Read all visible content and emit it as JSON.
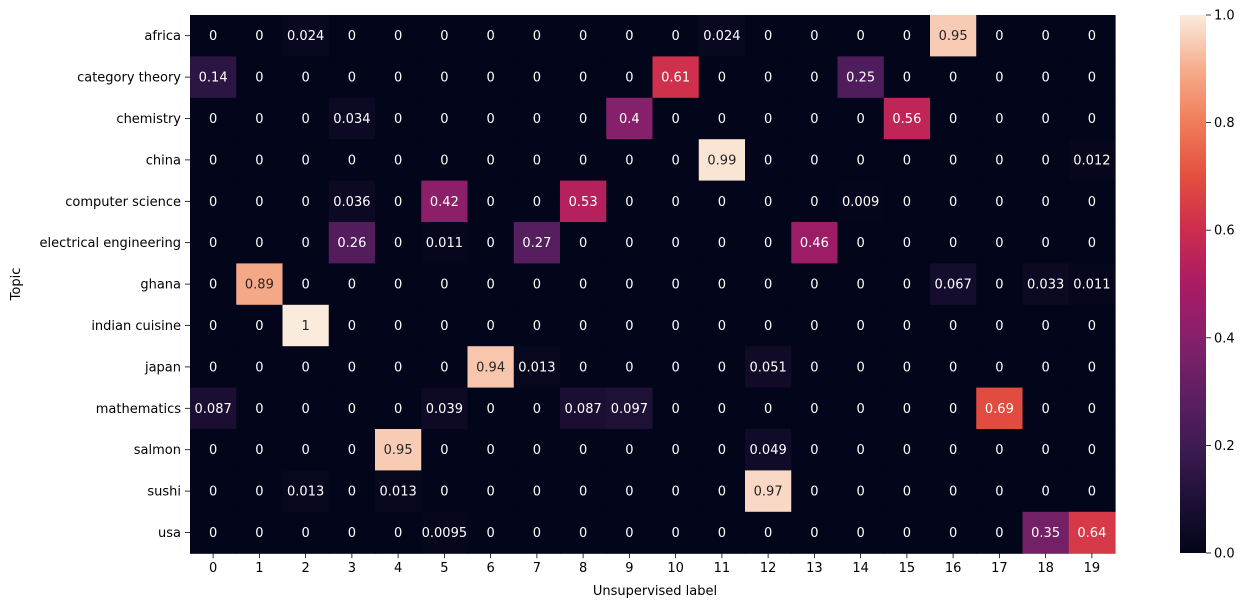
{
  "chart_data": {
    "type": "heatmap",
    "xlabel": "Unsupervised label",
    "ylabel": "Topic",
    "x": [
      "0",
      "1",
      "2",
      "3",
      "4",
      "5",
      "6",
      "7",
      "8",
      "9",
      "10",
      "11",
      "12",
      "13",
      "14",
      "15",
      "16",
      "17",
      "18",
      "19"
    ],
    "y": [
      "africa",
      "category theory",
      "chemistry",
      "china",
      "computer science",
      "electrical engineering",
      "ghana",
      "indian cuisine",
      "japan",
      "mathematics",
      "salmon",
      "sushi",
      "usa"
    ],
    "values": [
      [
        "0",
        "0",
        "0.024",
        "0",
        "0",
        "0",
        "0",
        "0",
        "0",
        "0",
        "0",
        "0.024",
        "0",
        "0",
        "0",
        "0",
        "0.95",
        "0",
        "0",
        "0"
      ],
      [
        "0.14",
        "0",
        "0",
        "0",
        "0",
        "0",
        "0",
        "0",
        "0",
        "0",
        "0.61",
        "0",
        "0",
        "0",
        "0.25",
        "0",
        "0",
        "0",
        "0",
        "0"
      ],
      [
        "0",
        "0",
        "0",
        "0.034",
        "0",
        "0",
        "0",
        "0",
        "0",
        "0.4",
        "0",
        "0",
        "0",
        "0",
        "0",
        "0.56",
        "0",
        "0",
        "0",
        "0"
      ],
      [
        "0",
        "0",
        "0",
        "0",
        "0",
        "0",
        "0",
        "0",
        "0",
        "0",
        "0",
        "0.99",
        "0",
        "0",
        "0",
        "0",
        "0",
        "0",
        "0",
        "0.012"
      ],
      [
        "0",
        "0",
        "0",
        "0.036",
        "0",
        "0.42",
        "0",
        "0",
        "0.53",
        "0",
        "0",
        "0",
        "0",
        "0",
        "0.009",
        "0",
        "0",
        "0",
        "0",
        "0"
      ],
      [
        "0",
        "0",
        "0",
        "0.26",
        "0",
        "0.011",
        "0",
        "0.27",
        "0",
        "0",
        "0",
        "0",
        "0",
        "0.46",
        "0",
        "0",
        "0",
        "0",
        "0",
        "0"
      ],
      [
        "0",
        "0.89",
        "0",
        "0",
        "0",
        "0",
        "0",
        "0",
        "0",
        "0",
        "0",
        "0",
        "0",
        "0",
        "0",
        "0",
        "0.067",
        "0",
        "0.033",
        "0.011"
      ],
      [
        "0",
        "0",
        "1",
        "0",
        "0",
        "0",
        "0",
        "0",
        "0",
        "0",
        "0",
        "0",
        "0",
        "0",
        "0",
        "0",
        "0",
        "0",
        "0",
        "0"
      ],
      [
        "0",
        "0",
        "0",
        "0",
        "0",
        "0",
        "0.94",
        "0.013",
        "0",
        "0",
        "0",
        "0",
        "0.051",
        "0",
        "0",
        "0",
        "0",
        "0",
        "0",
        "0"
      ],
      [
        "0.087",
        "0",
        "0",
        "0",
        "0",
        "0.039",
        "0",
        "0",
        "0.087",
        "0.097",
        "0",
        "0",
        "0",
        "0",
        "0",
        "0",
        "0",
        "0.69",
        "0",
        "0"
      ],
      [
        "0",
        "0",
        "0",
        "0",
        "0.95",
        "0",
        "0",
        "0",
        "0",
        "0",
        "0",
        "0",
        "0.049",
        "0",
        "0",
        "0",
        "0",
        "0",
        "0",
        "0"
      ],
      [
        "0",
        "0",
        "0.013",
        "0",
        "0.013",
        "0",
        "0",
        "0",
        "0",
        "0",
        "0",
        "0",
        "0.97",
        "0",
        "0",
        "0",
        "0",
        "0",
        "0",
        "0"
      ],
      [
        "0",
        "0",
        "0",
        "0",
        "0",
        "0.0095",
        "0",
        "0",
        "0",
        "0",
        "0",
        "0",
        "0",
        "0",
        "0",
        "0",
        "0",
        "0",
        "0.35",
        "0.64"
      ]
    ],
    "colorbar": {
      "range": [
        0,
        1
      ],
      "ticks": [
        "0.0",
        "0.2",
        "0.4",
        "0.6",
        "0.8",
        "1.0"
      ]
    },
    "annotations": "cell values shown",
    "colormap": "rocket"
  }
}
